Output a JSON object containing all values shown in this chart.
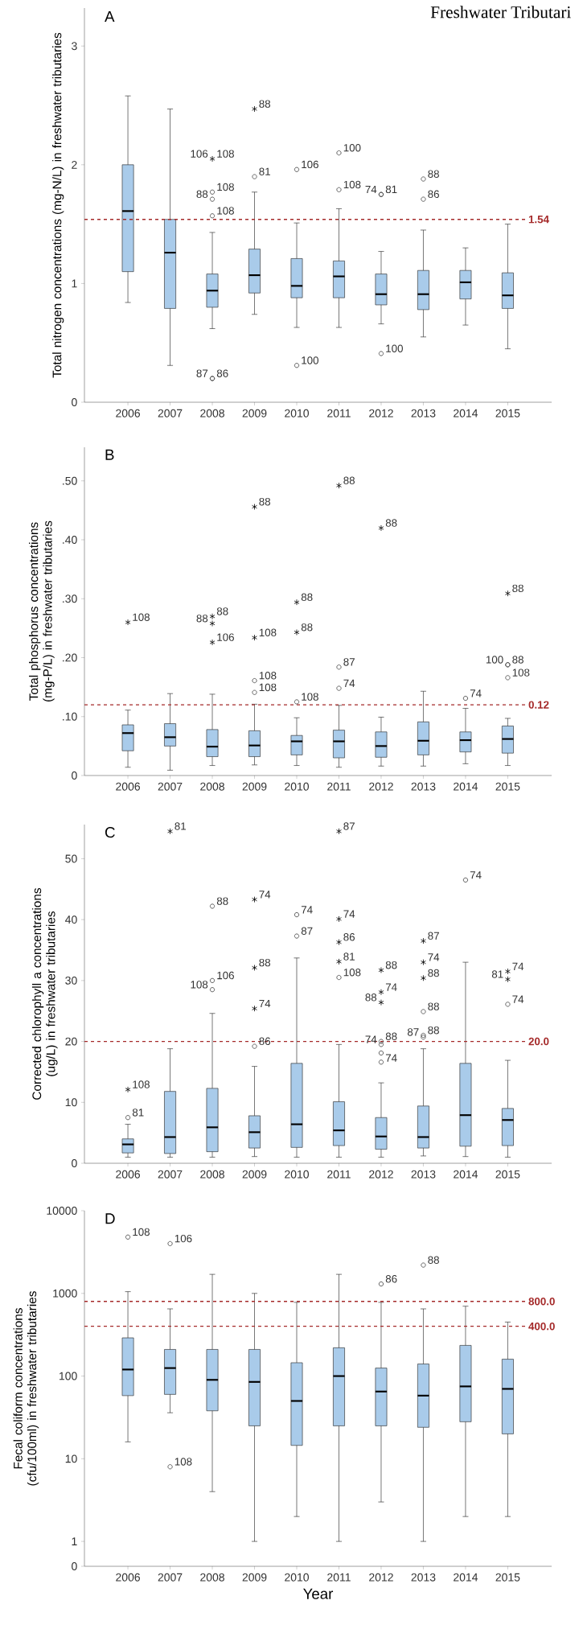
{
  "chart_data": [
    {
      "type": "box",
      "title": "A",
      "ylabel": "Total nitrogen concentrations (mg-N/L) in freshwater tributaries",
      "x": [
        2006,
        2007,
        2008,
        2009,
        2010,
        2011,
        2012,
        2013,
        2014,
        2015
      ],
      "xlim": [
        2004.97,
        2016.04
      ],
      "xticks": [
        2006,
        2007,
        2008,
        2009,
        2010,
        2011,
        2012,
        2013,
        2014,
        2015
      ],
      "ylim": [
        0,
        3.32
      ],
      "yticks": [
        0,
        1,
        2,
        3
      ],
      "series": [
        {
          "type": "box",
          "color": "#a9cbea",
          "boxes": [
            {
              "low": 0.84,
              "q1": 1.1,
              "median": 1.61,
              "q3": 2.0,
              "high": 2.58
            },
            {
              "low": 0.31,
              "q1": 0.79,
              "median": 1.26,
              "q3": 1.54,
              "high": 2.47
            },
            {
              "low": 0.62,
              "q1": 0.8,
              "median": 0.94,
              "q3": 1.08,
              "high": 1.43
            },
            {
              "low": 0.74,
              "q1": 0.92,
              "median": 1.07,
              "q3": 1.29,
              "high": 1.77
            },
            {
              "low": 0.63,
              "q1": 0.88,
              "median": 0.98,
              "q3": 1.21,
              "high": 1.51
            },
            {
              "low": 0.63,
              "q1": 0.88,
              "median": 1.06,
              "q3": 1.19,
              "high": 1.63
            },
            {
              "low": 0.66,
              "q1": 0.82,
              "median": 0.91,
              "q3": 1.08,
              "high": 1.27
            },
            {
              "low": 0.55,
              "q1": 0.78,
              "median": 0.91,
              "q3": 1.11,
              "high": 1.45
            },
            {
              "low": 0.65,
              "q1": 0.87,
              "median": 1.01,
              "q3": 1.11,
              "high": 1.3
            },
            {
              "low": 0.45,
              "q1": 0.79,
              "median": 0.9,
              "q3": 1.09,
              "high": 1.5
            }
          ]
        },
        {
          "type": "scatter",
          "marker": "circle",
          "color": "#404040",
          "x": [
            2008,
            2008,
            2008,
            2008,
            2008,
            2009,
            2010,
            2010,
            2011,
            2011,
            2012,
            2012,
            2012,
            2013,
            2013
          ],
          "values": [
            1.77,
            1.71,
            1.57,
            0.2,
            0.2,
            1.9,
            1.96,
            0.31,
            2.1,
            1.79,
            1.75,
            1.75,
            0.41,
            1.88,
            1.71
          ]
        },
        {
          "type": "scatter",
          "marker": "cross",
          "color": "#000000",
          "x": [
            2008,
            2009
          ],
          "values": [
            2.05,
            2.47
          ]
        }
      ],
      "ref_lines": [
        {
          "axis": "y",
          "value": 1.54,
          "label": "1.54",
          "color": "#a52a2a",
          "line_style": "dashed"
        }
      ],
      "annotations": [
        "Freshwater Tributari",
        {
          "text": "108",
          "x": 2008,
          "y": 2.05
        },
        {
          "text": "106",
          "x": 2008,
          "y": 2.05
        },
        {
          "text": "108",
          "x": 2008,
          "y": 1.77
        },
        {
          "text": "88",
          "x": 2008,
          "y": 1.71
        },
        {
          "text": "108",
          "x": 2008,
          "y": 1.57
        },
        {
          "text": "86",
          "x": 2008,
          "y": 0.2
        },
        {
          "text": "87",
          "x": 2008,
          "y": 0.2
        },
        {
          "text": "88",
          "x": 2009,
          "y": 2.47
        },
        {
          "text": "81",
          "x": 2009,
          "y": 1.9
        },
        {
          "text": "106",
          "x": 2010,
          "y": 1.96
        },
        {
          "text": "100",
          "x": 2010,
          "y": 0.31
        },
        {
          "text": "100",
          "x": 2011,
          "y": 2.1
        },
        {
          "text": "108",
          "x": 2011,
          "y": 1.79
        },
        {
          "text": "81",
          "x": 2012,
          "y": 1.75
        },
        {
          "text": "74",
          "x": 2012,
          "y": 1.75
        },
        {
          "text": "100",
          "x": 2012,
          "y": 0.41
        },
        {
          "text": "88",
          "x": 2013,
          "y": 1.88
        },
        {
          "text": "86",
          "x": 2013,
          "y": 1.71
        }
      ]
    },
    {
      "type": "box",
      "title": "B",
      "ylabel": "Total phosphorus concentrations (mg-P/L) in freshwater tributaries",
      "x": [
        2006,
        2007,
        2008,
        2009,
        2010,
        2011,
        2012,
        2013,
        2014,
        2015
      ],
      "xlim": [
        2004.97,
        2016.04
      ],
      "xticks": [
        2006,
        2007,
        2008,
        2009,
        2010,
        2011,
        2012,
        2013,
        2014,
        2015
      ],
      "ylim": [
        0,
        0.557
      ],
      "yticks": [
        0,
        {
          "value": 0.1,
          "label": ".10"
        },
        {
          "value": 0.2,
          "label": ".20"
        },
        {
          "value": 0.3,
          "label": ".30"
        },
        {
          "value": 0.4,
          "label": ".40"
        },
        {
          "value": 0.5,
          "label": ".50"
        }
      ],
      "series": [
        {
          "type": "box",
          "color": "#a9cbea",
          "boxes": [
            {
              "low": 0.014,
              "q1": 0.042,
              "median": 0.072,
              "q3": 0.086,
              "high": 0.111
            },
            {
              "low": 0.009,
              "q1": 0.05,
              "median": 0.065,
              "q3": 0.088,
              "high": 0.139
            },
            {
              "low": 0.017,
              "q1": 0.032,
              "median": 0.049,
              "q3": 0.078,
              "high": 0.138
            },
            {
              "low": 0.018,
              "q1": 0.032,
              "median": 0.051,
              "q3": 0.076,
              "high": 0.121
            },
            {
              "low": 0.017,
              "q1": 0.035,
              "median": 0.058,
              "q3": 0.068,
              "high": 0.098
            },
            {
              "low": 0.014,
              "q1": 0.03,
              "median": 0.058,
              "q3": 0.077,
              "high": 0.119
            },
            {
              "low": 0.016,
              "q1": 0.031,
              "median": 0.05,
              "q3": 0.074,
              "high": 0.099
            },
            {
              "low": 0.016,
              "q1": 0.035,
              "median": 0.059,
              "q3": 0.091,
              "high": 0.143
            },
            {
              "low": 0.02,
              "q1": 0.04,
              "median": 0.06,
              "q3": 0.074,
              "high": 0.114
            },
            {
              "low": 0.017,
              "q1": 0.038,
              "median": 0.062,
              "q3": 0.084,
              "high": 0.097
            }
          ]
        },
        {
          "type": "scatter",
          "marker": "circle",
          "color": "#404040",
          "x": [
            2009,
            2009,
            2010,
            2011,
            2011,
            2014,
            2015,
            2015,
            2015
          ],
          "values": [
            0.161,
            0.141,
            0.125,
            0.184,
            0.148,
            0.131,
            0.188,
            0.188,
            0.166
          ]
        },
        {
          "type": "scatter",
          "marker": "cross",
          "color": "#000000",
          "x": [
            2006,
            2008,
            2008,
            2008,
            2009,
            2009,
            2010,
            2010,
            2011,
            2012,
            2015
          ],
          "values": [
            0.26,
            0.27,
            0.258,
            0.226,
            0.456,
            0.234,
            0.294,
            0.243,
            0.492,
            0.42,
            0.309
          ]
        }
      ],
      "ref_lines": [
        {
          "axis": "y",
          "value": 0.12,
          "label": "0.12",
          "color": "#a52a2a",
          "line_style": "dashed"
        }
      ],
      "annotations": [
        {
          "text": "108",
          "x": 2006,
          "y": 0.26
        },
        {
          "text": "88",
          "x": 2008,
          "y": 0.27
        },
        {
          "text": "88",
          "x": 2008,
          "y": 0.258
        },
        {
          "text": "106",
          "x": 2008,
          "y": 0.226
        },
        {
          "text": "88",
          "x": 2009,
          "y": 0.456
        },
        {
          "text": "108",
          "x": 2009,
          "y": 0.234
        },
        {
          "text": "108",
          "x": 2009,
          "y": 0.161
        },
        {
          "text": "108",
          "x": 2009,
          "y": 0.141
        },
        {
          "text": "88",
          "x": 2010,
          "y": 0.294
        },
        {
          "text": "88",
          "x": 2010,
          "y": 0.243
        },
        {
          "text": "108",
          "x": 2010,
          "y": 0.125
        },
        {
          "text": "88",
          "x": 2011,
          "y": 0.492
        },
        {
          "text": "87",
          "x": 2011,
          "y": 0.184
        },
        {
          "text": "74",
          "x": 2011,
          "y": 0.148
        },
        {
          "text": "88",
          "x": 2012,
          "y": 0.42
        },
        {
          "text": "74",
          "x": 2014,
          "y": 0.131
        },
        {
          "text": "88",
          "x": 2015,
          "y": 0.309
        },
        {
          "text": "88",
          "x": 2015,
          "y": 0.188
        },
        {
          "text": "100",
          "x": 2015,
          "y": 0.188
        },
        {
          "text": "108",
          "x": 2015,
          "y": 0.166
        }
      ]
    },
    {
      "type": "box",
      "title": "C",
      "ylabel": "Corrected chlorophyll a concentrations (ug/L) in freshwater tributaries",
      "x": [
        2006,
        2007,
        2008,
        2009,
        2010,
        2011,
        2012,
        2013,
        2014,
        2015
      ],
      "xlim": [
        2004.97,
        2016.04
      ],
      "xticks": [
        2006,
        2007,
        2008,
        2009,
        2010,
        2011,
        2012,
        2013,
        2014,
        2015
      ],
      "ylim": [
        0,
        55.6
      ],
      "yticks": [
        0,
        10,
        20,
        30,
        40,
        50
      ],
      "series": [
        {
          "type": "box",
          "color": "#a9cbea",
          "boxes": [
            {
              "low": 1.0,
              "q1": 1.7,
              "median": 3.1,
              "q3": 4.0,
              "high": 6.4
            },
            {
              "low": 1.0,
              "q1": 1.6,
              "median": 4.3,
              "q3": 11.8,
              "high": 18.8
            },
            {
              "low": 1.0,
              "q1": 1.9,
              "median": 5.9,
              "q3": 12.3,
              "high": 24.6
            },
            {
              "low": 1.1,
              "q1": 2.5,
              "median": 5.1,
              "q3": 7.8,
              "high": 15.9
            },
            {
              "low": 1.0,
              "q1": 2.6,
              "median": 6.4,
              "q3": 16.4,
              "high": 33.7
            },
            {
              "low": 1.0,
              "q1": 2.9,
              "median": 5.4,
              "q3": 10.1,
              "high": 19.5
            },
            {
              "low": 1.0,
              "q1": 2.3,
              "median": 4.4,
              "q3": 7.5,
              "high": 13.2
            },
            {
              "low": 1.2,
              "q1": 2.5,
              "median": 4.3,
              "q3": 9.4,
              "high": 18.8
            },
            {
              "low": 1.1,
              "q1": 2.8,
              "median": 7.9,
              "q3": 16.4,
              "high": 33.0
            },
            {
              "low": 1.0,
              "q1": 2.9,
              "median": 7.1,
              "q3": 9.0,
              "high": 16.9
            }
          ]
        },
        {
          "type": "scatter",
          "marker": "circle",
          "color": "#404040",
          "x": [
            2006,
            2008,
            2008,
            2008,
            2009,
            2010,
            2010,
            2011,
            2012,
            2012,
            2012,
            2012,
            2013,
            2013,
            2013,
            2014,
            2015
          ],
          "values": [
            7.5,
            42.2,
            30.0,
            28.5,
            19.2,
            40.8,
            37.3,
            30.5,
            20.0,
            19.5,
            18.1,
            16.6,
            24.9,
            21.0,
            20.7,
            46.5,
            26.1
          ]
        },
        {
          "type": "scatter",
          "marker": "cross",
          "color": "#000000",
          "x": [
            2006,
            2007,
            2009,
            2009,
            2009,
            2011,
            2011,
            2011,
            2011,
            2012,
            2012,
            2012,
            2013,
            2013,
            2013,
            2015,
            2015
          ],
          "values": [
            12.1,
            54.5,
            43.3,
            32.1,
            25.4,
            54.5,
            40.1,
            36.3,
            33.1,
            31.7,
            28.1,
            26.4,
            36.5,
            33.0,
            30.4,
            31.5,
            30.2
          ]
        }
      ],
      "ref_lines": [
        {
          "axis": "y",
          "value": 20,
          "label": "20.0",
          "color": "#a52a2a",
          "line_style": "dashed"
        }
      ],
      "annotations": [
        {
          "text": "108",
          "x": 2006,
          "y": 12.1
        },
        {
          "text": "81",
          "x": 2006,
          "y": 7.5
        },
        {
          "text": "81",
          "x": 2007,
          "y": 54.5
        },
        {
          "text": "88",
          "x": 2008,
          "y": 42.2
        },
        {
          "text": "106",
          "x": 2008,
          "y": 30.0
        },
        {
          "text": "108",
          "x": 2008,
          "y": 28.5
        },
        {
          "text": "74",
          "x": 2009,
          "y": 43.3
        },
        {
          "text": "88",
          "x": 2009,
          "y": 32.1
        },
        {
          "text": "74",
          "x": 2009,
          "y": 25.4
        },
        {
          "text": "86",
          "x": 2009,
          "y": 19.2
        },
        {
          "text": "74",
          "x": 2010,
          "y": 40.8
        },
        {
          "text": "87",
          "x": 2010,
          "y": 37.3
        },
        {
          "text": "87",
          "x": 2011,
          "y": 54.5
        },
        {
          "text": "74",
          "x": 2011,
          "y": 40.1
        },
        {
          "text": "86",
          "x": 2011,
          "y": 36.3
        },
        {
          "text": "81",
          "x": 2011,
          "y": 33.1
        },
        {
          "text": "108",
          "x": 2011,
          "y": 30.5
        },
        {
          "text": "88",
          "x": 2012,
          "y": 31.7
        },
        {
          "text": "74",
          "x": 2012,
          "y": 28.1
        },
        {
          "text": "88",
          "x": 2012,
          "y": 26.4
        },
        {
          "text": "88",
          "x": 2012,
          "y": 20.0
        },
        {
          "text": "74",
          "x": 2012,
          "y": 19.5
        },
        {
          "text": "74",
          "x": 2012,
          "y": 18.1
        },
        {
          "text": "87",
          "x": 2013,
          "y": 36.5
        },
        {
          "text": "74",
          "x": 2013,
          "y": 33.0
        },
        {
          "text": "88",
          "x": 2013,
          "y": 30.4
        },
        {
          "text": "88",
          "x": 2013,
          "y": 24.9
        },
        {
          "text": "88",
          "x": 2013,
          "y": 21.0
        },
        {
          "text": "87",
          "x": 2013,
          "y": 20.7
        },
        {
          "text": "74",
          "x": 2014,
          "y": 46.5
        },
        {
          "text": "74",
          "x": 2015,
          "y": 31.5
        },
        {
          "text": "81",
          "x": 2015,
          "y": 30.2
        },
        {
          "text": "74",
          "x": 2015,
          "y": 26.1
        }
      ]
    },
    {
      "type": "box",
      "title": "D",
      "ylabel": "Fecal coliform concentrations (cfu/100ml) in freshwater tributaries",
      "xlabel": "Year",
      "x": [
        2006,
        2007,
        2008,
        2009,
        2010,
        2011,
        2012,
        2013,
        2014,
        2015
      ],
      "xlim": [
        2004.97,
        2016.04
      ],
      "xticks": [
        2006,
        2007,
        2008,
        2009,
        2010,
        2011,
        2012,
        2013,
        2014,
        2015
      ],
      "log": true,
      "ylim": [
        0.5,
        10000
      ],
      "yticks": [
        {
          "value": 0.5,
          "label": "0"
        },
        1,
        10,
        100,
        1000,
        10000
      ],
      "series": [
        {
          "type": "box",
          "color": "#a9cbea",
          "boxes": [
            {
              "low": 16,
              "q1": 58,
              "median": 120,
              "q3": 290,
              "high": 1050
            },
            {
              "low": 36,
              "q1": 60,
              "median": 125,
              "q3": 210,
              "high": 650
            },
            {
              "low": 4,
              "q1": 38,
              "median": 90,
              "q3": 210,
              "high": 1700
            },
            {
              "low": 1,
              "q1": 25,
              "median": 85,
              "q3": 210,
              "high": 1000
            },
            {
              "low": 2,
              "q1": 14.5,
              "median": 50,
              "q3": 145,
              "high": 780
            },
            {
              "low": 1,
              "q1": 25,
              "median": 100,
              "q3": 220,
              "high": 1700
            },
            {
              "low": 3,
              "q1": 25,
              "median": 65,
              "q3": 125,
              "high": 780
            },
            {
              "low": 1,
              "q1": 24,
              "median": 58,
              "q3": 140,
              "high": 650
            },
            {
              "low": 2,
              "q1": 28,
              "median": 75,
              "q3": 235,
              "high": 700
            },
            {
              "low": 2,
              "q1": 20,
              "median": 70,
              "q3": 160,
              "high": 450
            }
          ]
        },
        {
          "type": "scatter",
          "marker": "circle",
          "color": "#404040",
          "x": [
            2006,
            2007,
            2007,
            2012,
            2013
          ],
          "values": [
            4800,
            4000,
            8,
            1300,
            2200
          ]
        }
      ],
      "ref_lines": [
        {
          "axis": "y",
          "value": 800,
          "label": "800.0",
          "color": "#a52a2a",
          "line_style": "dashed"
        },
        {
          "axis": "y",
          "value": 400,
          "label": "400.0",
          "color": "#a52a2a",
          "line_style": "dashed"
        }
      ],
      "annotations": [
        {
          "text": "108",
          "x": 2006,
          "y": 4800
        },
        {
          "text": "106",
          "x": 2007,
          "y": 4000
        },
        {
          "text": "108",
          "x": 2007,
          "y": 8
        },
        {
          "text": "86",
          "x": 2012,
          "y": 1300
        },
        {
          "text": "88",
          "x": 2013,
          "y": 2200
        }
      ]
    }
  ]
}
